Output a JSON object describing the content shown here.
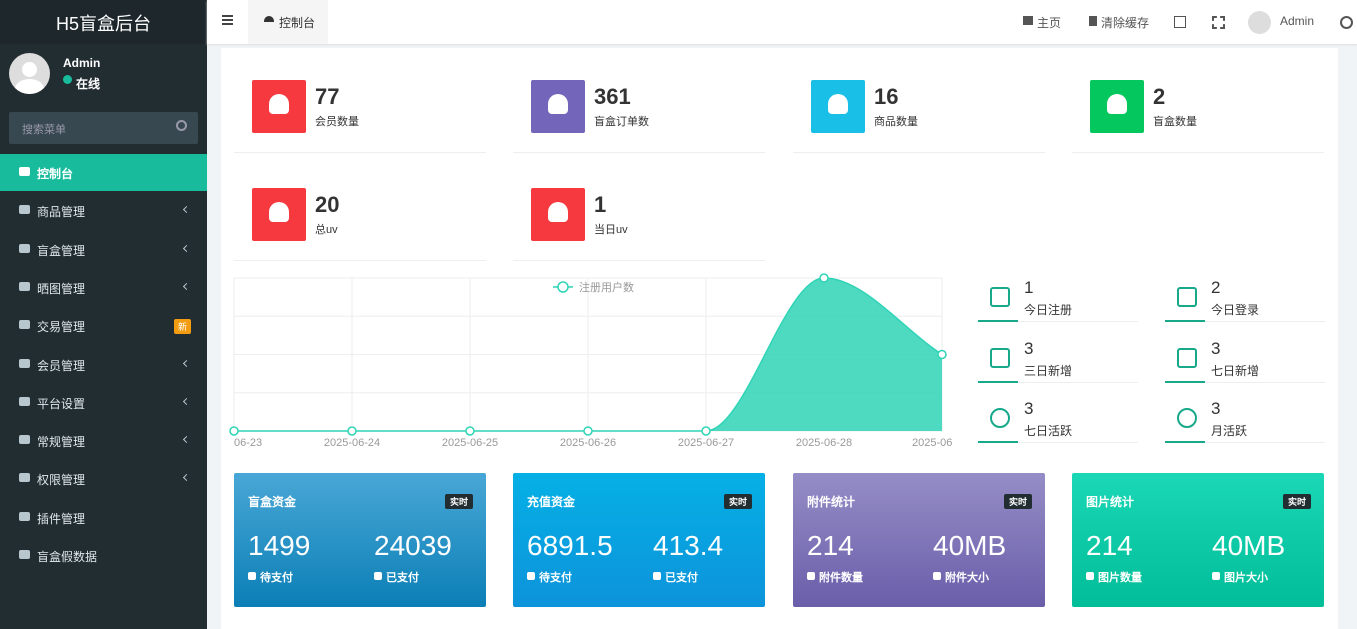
{
  "sidebar": {
    "brand": "H5盲盒后台",
    "user": "Admin",
    "status": "在线",
    "search_placeholder": "搜索菜单",
    "menu": [
      {
        "label": "控制台"
      },
      {
        "label": "商品管理"
      },
      {
        "label": "盲盒管理"
      },
      {
        "label": "晒图管理"
      },
      {
        "label": "交易管理",
        "badge": "新"
      },
      {
        "label": "会员管理"
      },
      {
        "label": "平台设置"
      },
      {
        "label": "常规管理"
      },
      {
        "label": "权限管理"
      },
      {
        "label": "插件管理"
      },
      {
        "label": "盲盒假数据"
      }
    ]
  },
  "header": {
    "tab": "控制台",
    "links": [
      "主页",
      "清除缓存"
    ],
    "user": "Admin"
  },
  "stats": [
    {
      "value": 77,
      "label": "会员数量",
      "color": "#f5393f"
    },
    {
      "value": 361,
      "label": "盲盒订单数",
      "color": "#7365ba"
    },
    {
      "value": 16,
      "label": "商品数量",
      "color": "#1abfe8"
    },
    {
      "value": 2,
      "label": "盲盒数量",
      "color": "#04c85d"
    },
    {
      "value": 20,
      "label": "总uv",
      "color": "#f5393f"
    },
    {
      "value": 1,
      "label": "当日uv",
      "color": "#f5393f"
    }
  ],
  "chart_data": {
    "type": "area",
    "categories": [
      "06-23",
      "2025-06-24",
      "2025-06-25",
      "2025-06-26",
      "2025-06-27",
      "2025-06-28",
      "2025-06"
    ],
    "series": [
      {
        "name": "注册用户数",
        "color": "#2fd4b6",
        "values": [
          0,
          0,
          0,
          0,
          0,
          2,
          1
        ]
      }
    ],
    "ylim": [
      0,
      2
    ],
    "grid": true
  },
  "summary": [
    {
      "value": 1,
      "label": "今日注册"
    },
    {
      "value": 2,
      "label": "今日登录"
    },
    {
      "value": 3,
      "label": "三日新增"
    },
    {
      "value": 3,
      "label": "七日新增"
    },
    {
      "value": 3,
      "label": "七日活跃"
    },
    {
      "value": 3,
      "label": "月活跃"
    }
  ],
  "panels": [
    {
      "title": "盲盒资金",
      "tag": "实时",
      "items": [
        {
          "value": 1499,
          "label": "待支付"
        },
        {
          "value": 24039,
          "label": "已支付"
        }
      ]
    },
    {
      "title": "充值资金",
      "tag": "实时",
      "items": [
        {
          "value": 6891.5,
          "label": "待支付"
        },
        {
          "value": 413.4,
          "label": "已支付"
        }
      ]
    },
    {
      "title": "附件统计",
      "tag": "实时",
      "items": [
        {
          "value": 214,
          "label": "附件数量"
        },
        {
          "value": "40MB",
          "label": "附件大小"
        }
      ]
    },
    {
      "title": "图片统计",
      "tag": "实时",
      "items": [
        {
          "value": 214,
          "label": "图片数量"
        },
        {
          "value": "40MB",
          "label": "图片大小"
        }
      ]
    }
  ]
}
